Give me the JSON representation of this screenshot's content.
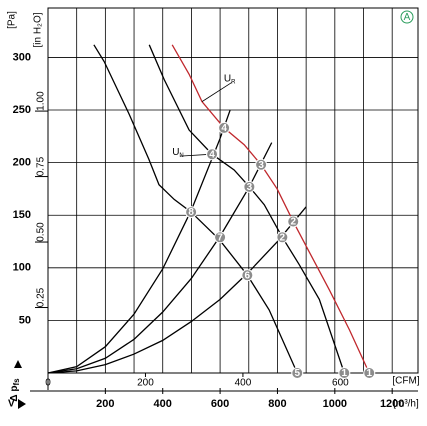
{
  "chart_data": {
    "type": "line",
    "y_label": "[Pa]",
    "y2_label": "[in H₂O]",
    "x_label": "[m³/h]",
    "x2_label": "[CFM]",
    "y_symbol": "Δ p",
    "y_symbol_sub": "fs",
    "x_symbol": "V̇",
    "badge": "A",
    "xlim": [
      0,
      1290
    ],
    "ylim": [
      0,
      347
    ],
    "xticks": [
      200,
      400,
      600,
      800,
      1000,
      1200
    ],
    "x_minor_ticks": [
      100,
      300,
      500,
      700,
      900,
      1100
    ],
    "yticks": [
      50,
      100,
      150,
      200,
      250,
      300
    ],
    "x2ticks": [
      0,
      200,
      400,
      600
    ],
    "y2ticks": [
      {
        "value": 0.25,
        "label": "0.25"
      },
      {
        "value": 0.5,
        "label": "0.50"
      },
      0.75,
      {
        "value": 1,
        "label": "1.00"
      }
    ],
    "grid": true,
    "series": [
      {
        "color": "#000000",
        "x": [
          160,
          196,
          283,
          352,
          387,
          440,
          499,
          597,
          695,
          771,
          869
        ],
        "values": [
          312,
          296,
          246,
          203,
          179,
          165,
          153,
          127,
          93,
          60,
          0
        ]
      },
      {
        "color": "#000000",
        "x": [
          353,
          405,
          492,
          572,
          649,
          702,
          754,
          817,
          876,
          946,
          1033
        ],
        "values": [
          312,
          279,
          231,
          208,
          193,
          177,
          160,
          129,
          103,
          70,
          0
        ]
      },
      {
        "color": "#c0282d",
        "x": [
          433,
          492,
          537,
          614,
          684,
          743,
          799,
          855,
          911,
          981,
          1051,
          1120
        ],
        "values": [
          312,
          284,
          258,
          233,
          217,
          198,
          175,
          144,
          115,
          79,
          41,
          0
        ]
      },
      {
        "color": "#000000",
        "x": [
          0,
          100,
          200,
          300,
          400,
          500,
          600,
          635
        ],
        "values": [
          0,
          6,
          25,
          56,
          99,
          155,
          223,
          250
        ]
      },
      {
        "color": "#000000",
        "x": [
          0,
          100,
          200,
          300,
          400,
          500,
          600,
          700,
          780
        ],
        "values": [
          0,
          4,
          14,
          32,
          58,
          90,
          130,
          176,
          219
        ]
      },
      {
        "color": "#000000",
        "x": [
          0,
          100,
          200,
          300,
          400,
          500,
          600,
          700,
          800,
          900
        ],
        "values": [
          0,
          2,
          8,
          18,
          31,
          49,
          70,
          96,
          125,
          158
        ]
      }
    ],
    "curve_labels": [
      {
        "label": "U",
        "sub": "R",
        "x": 620,
        "y": 280,
        "tx": 537,
        "ty": 258
      },
      {
        "label": "U",
        "sub": "N",
        "x": 440,
        "y": 210,
        "tx": 572,
        "ty": 208
      }
    ],
    "points": [
      {
        "label": "1",
        "x": 1033,
        "y": 0
      },
      {
        "label": "1",
        "x": 1120,
        "y": 0
      },
      {
        "label": "2",
        "x": 817,
        "y": 129
      },
      {
        "label": "2",
        "x": 855,
        "y": 144
      },
      {
        "label": "3",
        "x": 702,
        "y": 177
      },
      {
        "label": "3",
        "x": 743,
        "y": 198
      },
      {
        "label": "4",
        "x": 572,
        "y": 208
      },
      {
        "label": "4",
        "x": 614,
        "y": 233
      },
      {
        "label": "5",
        "x": 869,
        "y": 0
      },
      {
        "label": "6",
        "x": 695,
        "y": 93
      },
      {
        "label": "7",
        "x": 600,
        "y": 129
      },
      {
        "label": "8",
        "x": 499,
        "y": 153
      }
    ]
  }
}
